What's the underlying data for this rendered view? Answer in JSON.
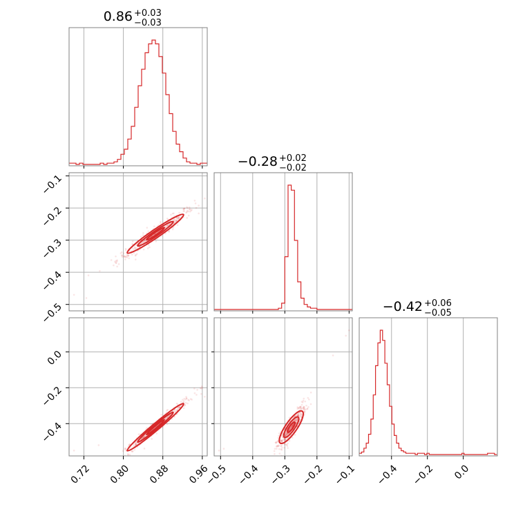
{
  "chart_data": {
    "type": "corner",
    "color": "#d62728",
    "parameters": [
      {
        "title_value": "0.86",
        "title_plus": "+0.03",
        "title_minus": "−0.03",
        "range": [
          0.69,
          0.97
        ],
        "ticks": [
          0.72,
          0.8,
          0.88,
          0.96
        ],
        "tick_labels": [
          "0.72",
          "0.80",
          "0.88",
          "0.96"
        ],
        "hist_bins": [
          0.69,
          0.697,
          0.704,
          0.711,
          0.718,
          0.725,
          0.732,
          0.739,
          0.746,
          0.753,
          0.76,
          0.767,
          0.774,
          0.781,
          0.788,
          0.795,
          0.802,
          0.809,
          0.816,
          0.823,
          0.83,
          0.837,
          0.844,
          0.851,
          0.858,
          0.865,
          0.872,
          0.879,
          0.886,
          0.893,
          0.9,
          0.907,
          0.914,
          0.921,
          0.928,
          0.935,
          0.942,
          0.949,
          0.956,
          0.963,
          0.97
        ],
        "hist_counts": [
          1,
          1,
          0,
          1,
          0,
          0,
          0,
          0,
          0,
          1,
          0,
          1,
          1,
          2,
          4,
          8,
          12,
          20,
          30,
          45,
          62,
          75,
          88,
          95,
          98,
          95,
          85,
          72,
          55,
          40,
          26,
          16,
          10,
          5,
          2,
          1,
          1,
          0,
          1,
          1
        ]
      },
      {
        "title_value": "−0.28",
        "title_plus": "+0.02",
        "title_minus": "−0.02",
        "range": [
          -0.52,
          -0.09
        ],
        "ticks": [
          -0.5,
          -0.4,
          -0.3,
          -0.2,
          -0.1
        ],
        "tick_labels": [
          "−0.5",
          "−0.4",
          "−0.3",
          "−0.2",
          "−0.1"
        ],
        "hist_bins": [
          -0.52,
          -0.51,
          -0.5,
          -0.49,
          -0.48,
          -0.47,
          -0.46,
          -0.45,
          -0.44,
          -0.43,
          -0.42,
          -0.41,
          -0.4,
          -0.39,
          -0.38,
          -0.37,
          -0.36,
          -0.35,
          -0.34,
          -0.33,
          -0.32,
          -0.31,
          -0.3,
          -0.29,
          -0.28,
          -0.27,
          -0.26,
          -0.25,
          -0.24,
          -0.23,
          -0.22,
          -0.21,
          -0.2,
          -0.19,
          -0.18,
          -0.17,
          -0.16,
          -0.15,
          -0.14,
          -0.13,
          -0.12,
          -0.11,
          -0.1,
          -0.09
        ],
        "hist_counts": [
          0,
          0,
          0,
          0,
          0,
          0,
          0,
          0,
          0,
          0,
          0,
          0,
          0,
          0,
          0,
          0,
          0,
          0,
          0,
          0,
          1,
          5,
          42,
          99,
          95,
          55,
          22,
          9,
          4,
          2,
          1,
          1,
          0,
          0,
          0,
          0,
          0,
          0,
          0,
          0,
          0,
          0,
          0
        ]
      },
      {
        "title_value": "−0.42",
        "title_plus": "+0.06",
        "title_minus": "−0.05",
        "range": [
          -0.58,
          0.19
        ],
        "ticks": [
          -0.4,
          -0.2,
          0.0
        ],
        "tick_labels": [
          "−0.4",
          "−0.2",
          "0.0"
        ],
        "left_ticks": [
          0.0,
          -0.2,
          -0.4
        ],
        "left_tick_labels": [
          "0.0",
          "−0.2",
          "−0.4"
        ],
        "hist_bins": [
          -0.58,
          -0.567,
          -0.554,
          -0.541,
          -0.528,
          -0.515,
          -0.502,
          -0.489,
          -0.476,
          -0.463,
          -0.45,
          -0.437,
          -0.424,
          -0.411,
          -0.398,
          -0.385,
          -0.372,
          -0.359,
          -0.346,
          -0.333,
          -0.32,
          -0.307,
          -0.294,
          -0.281,
          -0.268,
          -0.255,
          -0.242,
          -0.229,
          -0.216,
          -0.203,
          -0.19,
          -0.177,
          -0.164,
          -0.151,
          -0.138,
          -0.125,
          -0.112,
          -0.099,
          -0.086,
          -0.073,
          -0.06,
          -0.047,
          -0.034,
          -0.021,
          -0.008,
          0.005,
          0.018,
          0.031,
          0.044,
          0.057,
          0.07,
          0.083,
          0.096,
          0.109,
          0.122,
          0.135,
          0.148,
          0.161,
          0.174,
          0.187
        ],
        "hist_counts": [
          1,
          2,
          5,
          9,
          16,
          28,
          47,
          70,
          88,
          98,
          90,
          72,
          55,
          38,
          24,
          15,
          9,
          5,
          3,
          2,
          1,
          1,
          1,
          1,
          0,
          1,
          1,
          1,
          0,
          1,
          0,
          0,
          0,
          0,
          0,
          0,
          0,
          0,
          0,
          0,
          0,
          0,
          0,
          0,
          1,
          0,
          0,
          0,
          0,
          0,
          0,
          0,
          0,
          0,
          0,
          1,
          1,
          1,
          0
        ]
      }
    ],
    "pairs": [
      {
        "x": 0,
        "y": 1,
        "center": [
          0.865,
          -0.28
        ],
        "slope": 1.05,
        "sx": 0.03,
        "sy_perp": 0.008,
        "outliers": [
          [
            0.7,
            -0.47
          ],
          [
            0.725,
            -0.48
          ],
          [
            0.965,
            -0.17
          ]
        ]
      },
      {
        "x": 0,
        "y": 2,
        "center": [
          0.865,
          -0.42
        ],
        "slope": 2.3,
        "sx": 0.03,
        "sy_perp": 0.012,
        "outliers": [
          [
            0.7,
            -0.55
          ],
          [
            0.75,
            -0.52
          ],
          [
            0.965,
            -0.25
          ],
          [
            0.96,
            -0.2
          ]
        ]
      },
      {
        "x": 1,
        "y": 2,
        "center": [
          -0.28,
          -0.42
        ],
        "slope": 2.6,
        "sx": 0.018,
        "sy_perp": 0.02,
        "outliers": [
          [
            -0.505,
            -0.55
          ],
          [
            -0.49,
            -0.54
          ],
          [
            -0.11,
            0.09
          ],
          [
            -0.1,
            0.12
          ],
          [
            -0.15,
            -0.02
          ]
        ]
      }
    ]
  }
}
